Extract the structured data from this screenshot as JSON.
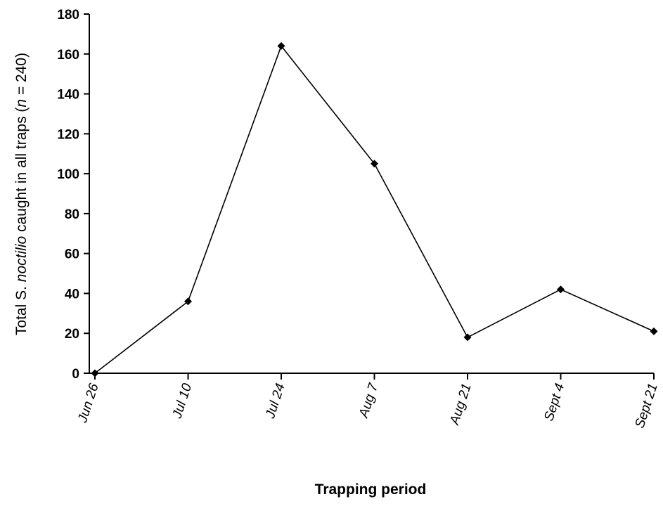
{
  "chart_data": {
    "type": "line",
    "x_label": "Trapping period",
    "y_label_parts": [
      {
        "text": "Total ",
        "italic": false
      },
      {
        "text": "S. ",
        "italic": false
      },
      {
        "text": "noctilio",
        "italic": true
      },
      {
        "text": " caught in all traps (",
        "italic": false
      },
      {
        "text": "n",
        "italic": true
      },
      {
        "text": " = 240)",
        "italic": false
      }
    ],
    "categories": [
      "Jun 26",
      "Jul 10",
      "Jul 24",
      "Aug 7",
      "Aug 21",
      "Sept 4",
      "Sept 21"
    ],
    "values": [
      0,
      36,
      164,
      105,
      18,
      42,
      21
    ],
    "ylim": [
      0,
      180
    ],
    "y_ticks": [
      0,
      20,
      40,
      60,
      80,
      100,
      120,
      140,
      160,
      180
    ],
    "grid": false,
    "legend": "none",
    "colors": {
      "line": "#000000",
      "marker": "#000000",
      "axis": "#000000",
      "background": "#ffffff"
    },
    "marker_shape": "diamond"
  }
}
